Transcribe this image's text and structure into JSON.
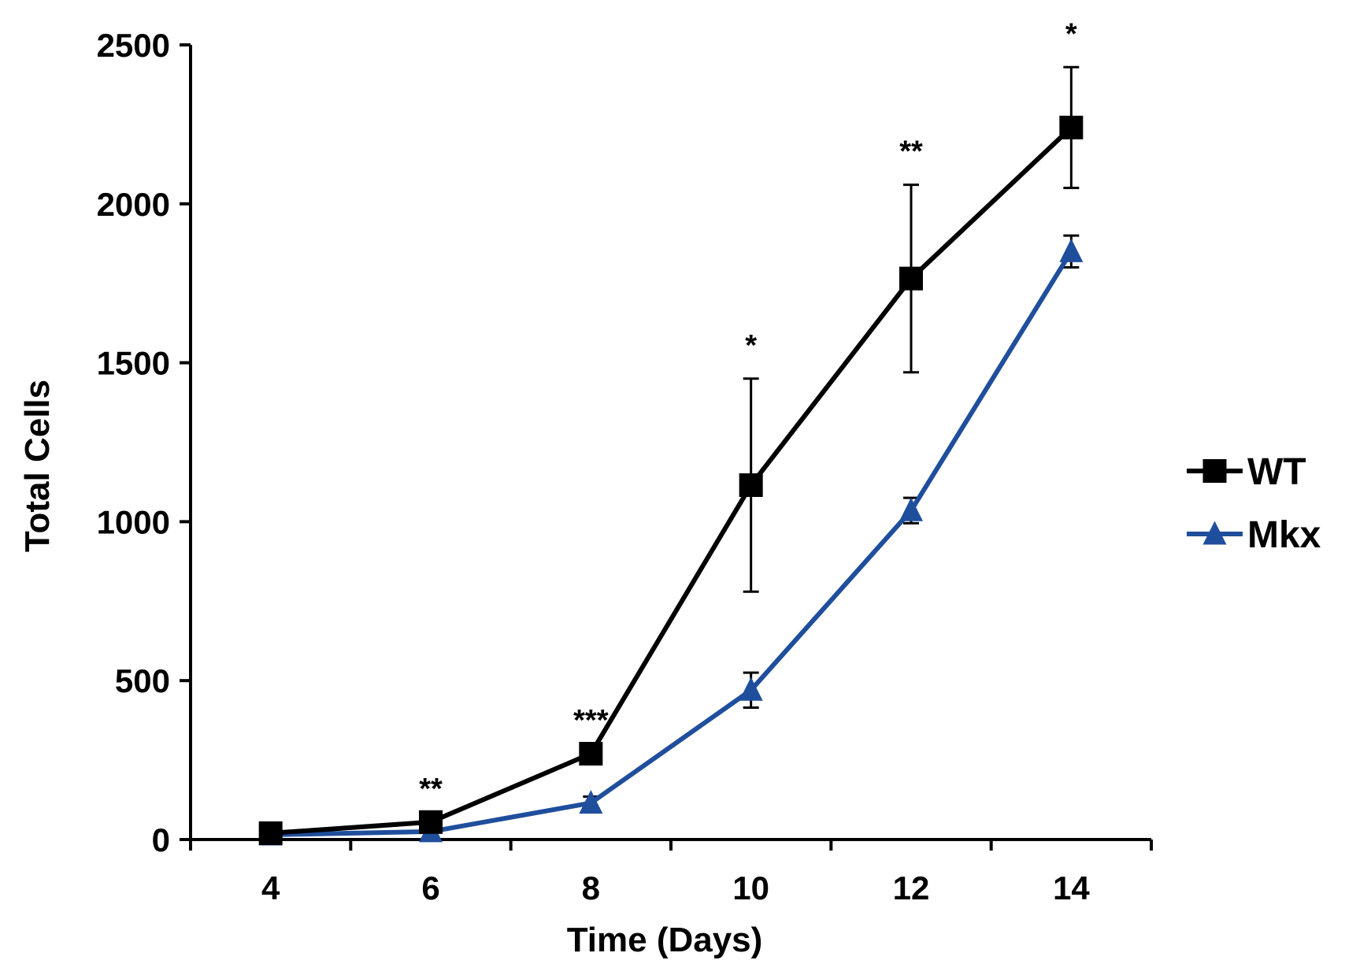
{
  "chart_data": {
    "type": "line",
    "title": "",
    "xlabel": "Time (Days)",
    "ylabel": "Total Cells",
    "x": [
      4,
      6,
      8,
      10,
      12,
      14
    ],
    "xticks": [
      "4",
      "6",
      "8",
      "10",
      "12",
      "14"
    ],
    "xlim": [
      3,
      15
    ],
    "ylim": [
      0,
      2500
    ],
    "yticks": [
      "0",
      "500",
      "1000",
      "1500",
      "2000",
      "2500"
    ],
    "yticks_values": [
      0,
      500,
      1000,
      1500,
      2000,
      2500
    ],
    "grid": false,
    "legend_position": "right",
    "series": [
      {
        "name": "WT",
        "color": "#000000",
        "marker": "square",
        "values": [
          20,
          55,
          270,
          1115,
          1765,
          2240
        ],
        "error": [
          0,
          0,
          0,
          335,
          295,
          190
        ]
      },
      {
        "name": "Mkx",
        "color": "#1f4e9c",
        "marker": "triangle",
        "values": [
          15,
          25,
          115,
          470,
          1035,
          1850
        ],
        "error": [
          0,
          0,
          20,
          55,
          40,
          50
        ]
      }
    ],
    "annotations": [
      {
        "x": 6,
        "text": "**"
      },
      {
        "x": 8,
        "text": "***"
      },
      {
        "x": 10,
        "text": "*"
      },
      {
        "x": 12,
        "text": "**"
      },
      {
        "x": 14,
        "text": "*"
      }
    ]
  }
}
